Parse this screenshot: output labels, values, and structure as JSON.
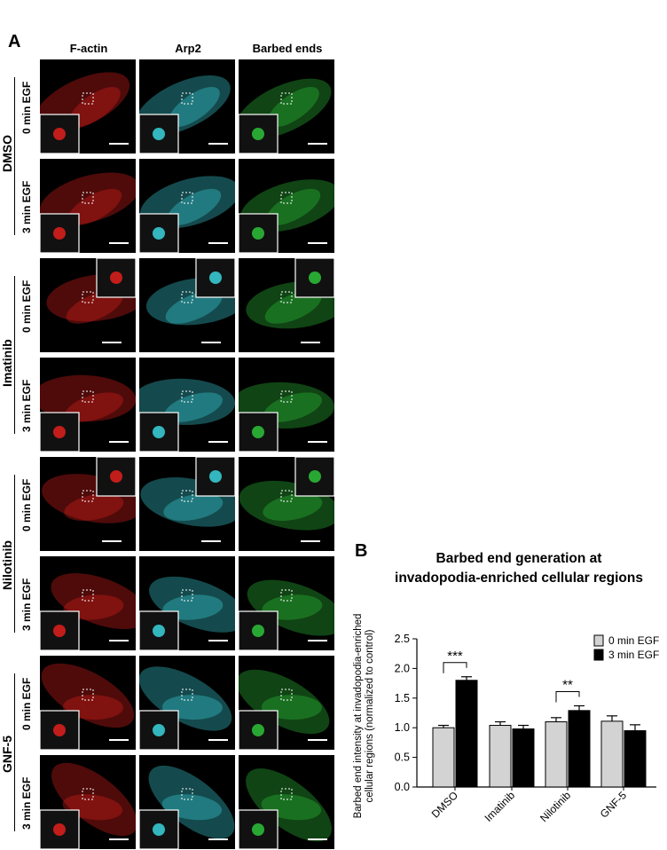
{
  "figure": {
    "panel_a_label": "A",
    "panel_b_label": "B",
    "columns": [
      "F-actin",
      "Arp2",
      "Barbed ends"
    ],
    "channel_colors": [
      "#e0201c",
      "#39d3dc",
      "#2ec23a"
    ],
    "conditions": [
      "0 min EGF",
      "3 min EGF"
    ],
    "treatments": [
      "DMSO",
      "Imatinib",
      "Nilotinib",
      "GNF-5"
    ]
  },
  "chart_data": {
    "type": "bar",
    "title": "Barbed end generation at invadopodia-enriched cellular regions",
    "title_lines": [
      "Barbed end generation at",
      "invadopodia-enriched cellular regions"
    ],
    "ylabel_lines": [
      "Barbed end intensity at invadopodia-enriched",
      "cellular regions (normalized to control)"
    ],
    "xlabel": "",
    "categories": [
      "DMSO",
      "Imatinib",
      "Nilotinib",
      "GNF-5"
    ],
    "series": [
      {
        "name": "0 min EGF",
        "color": "#d3d3d3",
        "values": [
          1.0,
          1.04,
          1.1,
          1.11
        ],
        "errors": [
          0.04,
          0.06,
          0.07,
          0.09
        ]
      },
      {
        "name": "3 min EGF",
        "color": "#000000",
        "values": [
          1.8,
          0.98,
          1.29,
          0.95
        ],
        "errors": [
          0.06,
          0.06,
          0.08,
          0.1
        ]
      }
    ],
    "ylim": [
      0.0,
      2.5
    ],
    "yticks": [
      "0.0",
      "0.5",
      "1.0",
      "1.5",
      "2.0",
      "2.5"
    ],
    "legend_position": "top-right",
    "annotations": [
      {
        "category": "DMSO",
        "text": "***"
      },
      {
        "category": "Nilotinib",
        "text": "**"
      }
    ]
  }
}
